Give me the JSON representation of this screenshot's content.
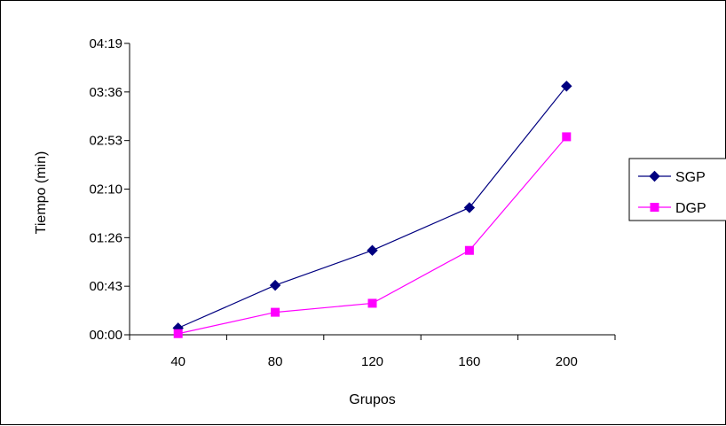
{
  "chart_data": {
    "type": "line",
    "title": "",
    "xlabel": "Grupos",
    "ylabel": "Tiempo (min)",
    "categories": [
      "40",
      "80",
      "120",
      "160",
      "200"
    ],
    "y_ticks": [
      "00:00",
      "00:43",
      "01:26",
      "02:10",
      "02:53",
      "03:36",
      "04:19"
    ],
    "y_unit": "seconds",
    "ylim": [
      0,
      259
    ],
    "grid": false,
    "legend_position": "right",
    "series": [
      {
        "name": "SGP",
        "color": "#000080",
        "marker": "diamond",
        "values": [
          6,
          44,
          75,
          113,
          221
        ]
      },
      {
        "name": "DGP",
        "color": "#ff00ff",
        "marker": "square",
        "values": [
          1,
          20,
          28,
          75,
          176
        ]
      }
    ]
  }
}
